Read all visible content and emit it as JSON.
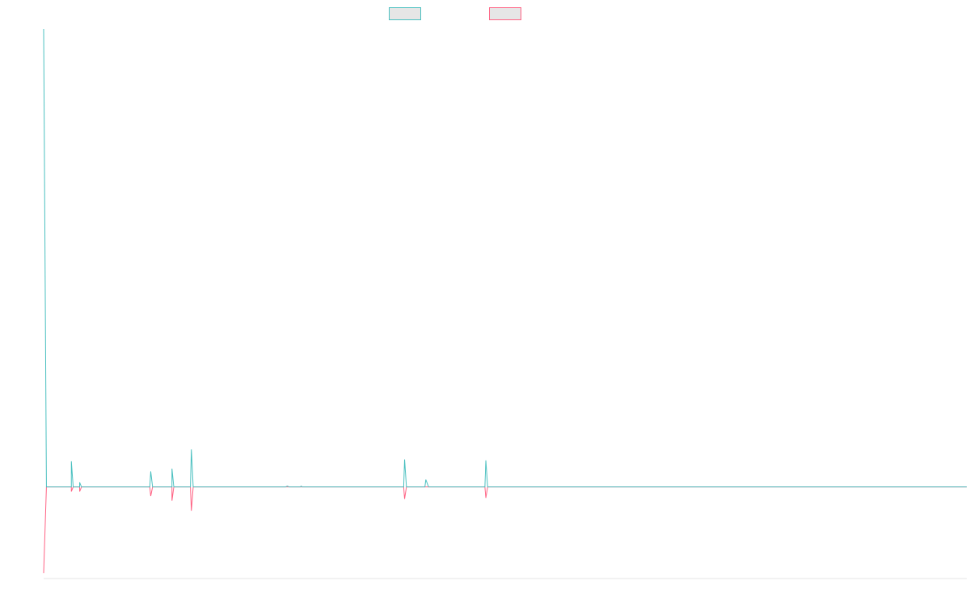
{
  "chart_data": {
    "type": "line",
    "title": "",
    "xlabel": "",
    "ylabel": "",
    "x_count": 1000,
    "ylim": [
      -100,
      500
    ],
    "grid": false,
    "legend_position": "top-center",
    "series": [
      {
        "color": "#4bc0c0",
        "points": [
          [
            0,
            500
          ],
          [
            3,
            0
          ],
          [
            30,
            0
          ],
          [
            30,
            28
          ],
          [
            32,
            0
          ],
          [
            39,
            0
          ],
          [
            39,
            5
          ],
          [
            41,
            0
          ],
          [
            115,
            0
          ],
          [
            116,
            17
          ],
          [
            118,
            0
          ],
          [
            139,
            0
          ],
          [
            139,
            20
          ],
          [
            141,
            0
          ],
          [
            159,
            0
          ],
          [
            160,
            41
          ],
          [
            162,
            0
          ],
          [
            262,
            0
          ],
          [
            264,
            1
          ],
          [
            266,
            0
          ],
          [
            278,
            0
          ],
          [
            279,
            1
          ],
          [
            280,
            0
          ],
          [
            390,
            0
          ],
          [
            391,
            30
          ],
          [
            393,
            0
          ],
          [
            413,
            0
          ],
          [
            414,
            8
          ],
          [
            417,
            0
          ],
          [
            478,
            0
          ],
          [
            479,
            29
          ],
          [
            481,
            0
          ],
          [
            1000,
            0
          ]
        ]
      },
      {
        "color": "#ff6384",
        "points": [
          [
            0,
            -94
          ],
          [
            3,
            0
          ],
          [
            30,
            0
          ],
          [
            30,
            -5
          ],
          [
            32,
            0
          ],
          [
            39,
            0
          ],
          [
            39,
            -5
          ],
          [
            41,
            0
          ],
          [
            115,
            0
          ],
          [
            116,
            -10
          ],
          [
            118,
            0
          ],
          [
            139,
            0
          ],
          [
            139,
            -15
          ],
          [
            141,
            0
          ],
          [
            159,
            0
          ],
          [
            160,
            -26
          ],
          [
            162,
            0
          ],
          [
            262,
            0
          ],
          [
            264,
            0
          ],
          [
            266,
            0
          ],
          [
            390,
            0
          ],
          [
            391,
            -13
          ],
          [
            393,
            0
          ],
          [
            413,
            0
          ],
          [
            414,
            0
          ],
          [
            417,
            0
          ],
          [
            478,
            0
          ],
          [
            479,
            -12
          ],
          [
            481,
            0
          ],
          [
            1000,
            0
          ]
        ]
      }
    ]
  }
}
